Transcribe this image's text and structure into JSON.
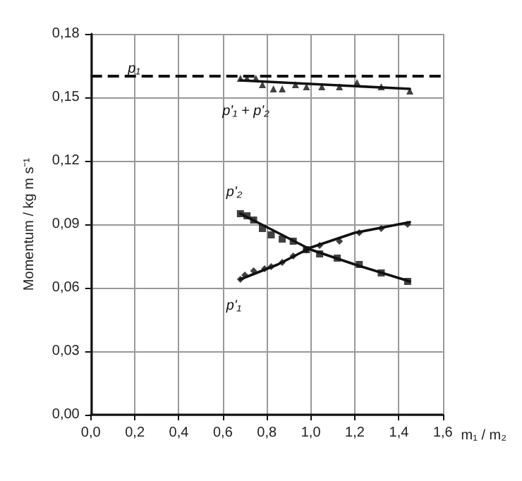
{
  "chart_data": {
    "type": "scatter",
    "xlabel": "m₁ / m₂",
    "ylabel": "Momentum / kg m s⁻¹",
    "xlim": [
      0,
      1.6
    ],
    "ylim": [
      0,
      0.18
    ],
    "xticks": [
      {
        "value": 0,
        "label": "0,0"
      },
      {
        "value": 0.2,
        "label": "0,2"
      },
      {
        "value": 0.4,
        "label": "0,4"
      },
      {
        "value": 0.6,
        "label": "0,6"
      },
      {
        "value": 0.8,
        "label": "0,8"
      },
      {
        "value": 1.0,
        "label": "1,0"
      },
      {
        "value": 1.2,
        "label": "1,2"
      },
      {
        "value": 1.4,
        "label": "1,4"
      },
      {
        "value": 1.6,
        "label": "1,6"
      }
    ],
    "yticks": [
      {
        "value": 0,
        "label": "0,00"
      },
      {
        "value": 0.03,
        "label": "0,03"
      },
      {
        "value": 0.06,
        "label": "0,06"
      },
      {
        "value": 0.09,
        "label": "0,09"
      },
      {
        "value": 0.12,
        "label": "0,12"
      },
      {
        "value": 0.15,
        "label": "0,15"
      },
      {
        "value": 0.18,
        "label": "0,18"
      }
    ],
    "grid": true,
    "series": [
      {
        "marker": "triangle",
        "color": "#111111",
        "x": [
          0.68,
          0.71,
          0.75,
          0.78,
          0.83,
          0.87,
          0.93,
          0.98,
          1.05,
          1.13,
          1.21,
          1.32,
          1.45
        ],
        "values": [
          0.159,
          0.159,
          0.159,
          0.156,
          0.154,
          0.154,
          0.156,
          0.155,
          0.155,
          0.155,
          0.157,
          0.155,
          0.153
        ]
      },
      {
        "type": "line",
        "marker": "none",
        "color": "#111111",
        "x": [
          0.68,
          1.45
        ],
        "values": [
          0.158,
          0.154
        ]
      },
      {
        "marker": "square",
        "color": "#111111",
        "x": [
          0.68,
          0.71,
          0.74,
          0.78,
          0.82,
          0.87,
          0.92,
          0.98,
          1.04,
          1.12,
          1.22,
          1.32,
          1.44
        ],
        "values": [
          0.095,
          0.094,
          0.092,
          0.088,
          0.085,
          0.083,
          0.082,
          0.078,
          0.076,
          0.074,
          0.071,
          0.067,
          0.063
        ]
      },
      {
        "type": "line",
        "marker": "none",
        "color": "#111111",
        "x": [
          0.68,
          0.85,
          1.0,
          1.2,
          1.45
        ],
        "values": [
          0.095,
          0.086,
          0.078,
          0.071,
          0.063
        ]
      },
      {
        "marker": "diamond",
        "color": "#111111",
        "x": [
          0.68,
          0.7,
          0.74,
          0.79,
          0.82,
          0.87,
          0.92,
          0.98,
          1.04,
          1.13,
          1.22,
          1.32,
          1.44
        ],
        "values": [
          0.064,
          0.066,
          0.068,
          0.069,
          0.07,
          0.072,
          0.075,
          0.078,
          0.08,
          0.082,
          0.086,
          0.088,
          0.09
        ]
      },
      {
        "type": "line",
        "marker": "none",
        "color": "#111111",
        "x": [
          0.68,
          0.85,
          1.0,
          1.2,
          1.45
        ],
        "values": [
          0.064,
          0.071,
          0.079,
          0.086,
          0.091
        ]
      }
    ],
    "ref_lines": [
      {
        "axis": "y",
        "value": 0.16,
        "line_style": "dashed",
        "color": "#111111"
      }
    ],
    "annotations": [
      {
        "text": "p₁",
        "x": 0.22,
        "y": 0.16
      },
      {
        "text": "p'₁ + p'₂",
        "x": 0.79,
        "y": 0.156
      },
      {
        "text": "p'₂",
        "x": 0.68,
        "y": 0.095
      },
      {
        "text": "p'₁",
        "x": 0.68,
        "y": 0.064
      }
    ]
  }
}
